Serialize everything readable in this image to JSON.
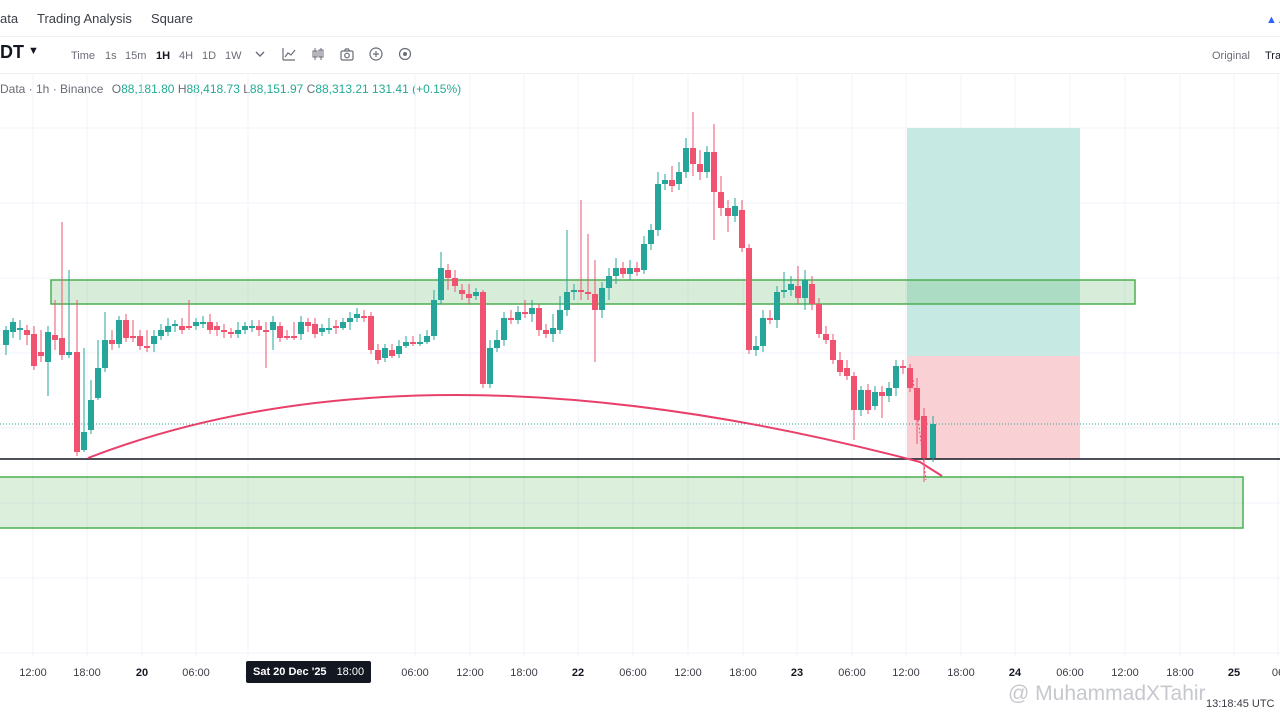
{
  "nav": {
    "items": [
      "ata",
      "Trading Analysis",
      "Square"
    ]
  },
  "toolbar": {
    "symbol": "DT",
    "intervals": [
      "Time",
      "1s",
      "15m",
      "1H",
      "4H",
      "1D",
      "1W"
    ],
    "active_interval": "1H",
    "icons": [
      "chevron-down-icon",
      "indicator-icon",
      "candle-type-icon",
      "camera-icon",
      "add-icon",
      "settings-icon"
    ],
    "view_original": "Original",
    "view_trading": "Tra"
  },
  "legend": {
    "source": "Data · 1h · Binance",
    "open_key": "O",
    "open": "88,181.80",
    "high_key": "H",
    "high": "88,418.73",
    "low_key": "L",
    "low": "88,151.97",
    "close_key": "C",
    "close": "88,313.21",
    "change": "131.41 (+0.15%)"
  },
  "chart_data": {
    "type": "candlestick",
    "x_ticks": [
      "12:00",
      "18:00",
      "20",
      "06:00",
      "1",
      "06:00",
      "12:00",
      "18:00",
      "22",
      "06:00",
      "12:00",
      "18:00",
      "23",
      "06:00",
      "12:00",
      "18:00",
      "24",
      "06:00",
      "12:00",
      "18:00",
      "25",
      "06"
    ],
    "bold_ticks": [
      "20",
      "22",
      "23",
      "24",
      "25"
    ],
    "crosshair_label_date": "Sat 20 Dec '25",
    "crosshair_label_time": "18:00",
    "colors": {
      "up": "#26a69a",
      "down": "#ef5370",
      "zone_fill": "#d8efd6",
      "zone_stroke": "#4caf50",
      "target": "#c7e9e3",
      "stop": "#f9d0d4",
      "arc": "#e8406a"
    }
  },
  "footer": {
    "watermark": "@ MuhammadXTahir",
    "clock": "13:18:45 UTC"
  }
}
